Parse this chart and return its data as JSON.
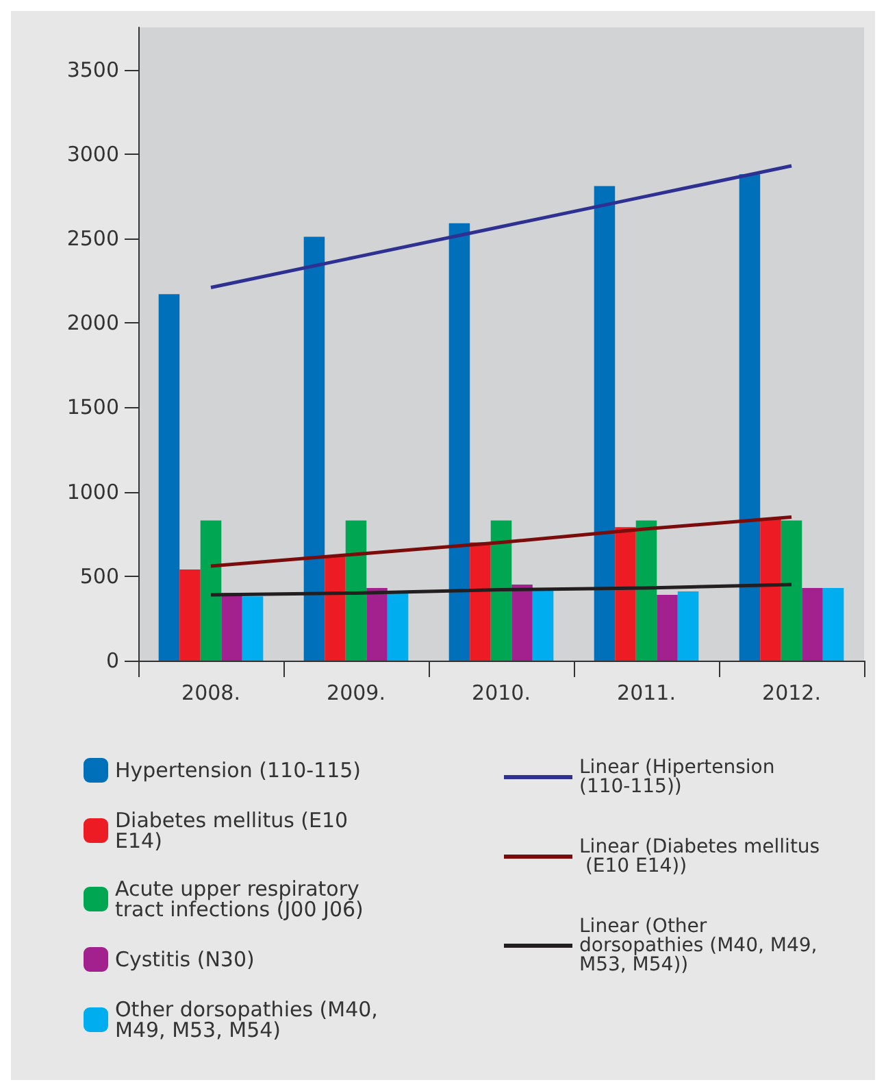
{
  "chart_data": {
    "type": "bar",
    "categories": [
      "2008.",
      "2009.",
      "2010.",
      "2011.",
      "2012."
    ],
    "ylim": [
      0,
      3750
    ],
    "yticks": [
      0,
      500,
      1000,
      1500,
      2000,
      2500,
      3000,
      3500
    ],
    "grid": false,
    "legend": "bottom",
    "series": [
      {
        "name": "Hypertension (110-115)",
        "color": "#0070ba",
        "values": [
          2170,
          2510,
          2590,
          2810,
          2880
        ]
      },
      {
        "name": "Diabetes mellitus (E10 E14)",
        "color": "#ed1c24",
        "values": [
          540,
          620,
          700,
          790,
          840
        ]
      },
      {
        "name": "Acute upper respiratory tract infections (J00 J06)",
        "color": "#00a651",
        "values": [
          830,
          830,
          830,
          830,
          830
        ]
      },
      {
        "name": "Cystitis (N30)",
        "color": "#a3218e",
        "values": [
          400,
          430,
          450,
          390,
          430
        ]
      },
      {
        "name": "Other dorsopathies (M40, M49, M53, M54)",
        "color": "#00aeef",
        "values": [
          380,
          400,
          430,
          410,
          430
        ]
      },
      {
        "name": "Linear (Hipertension (110-115))",
        "type": "line",
        "color": "#2e3192",
        "values": [
          2210,
          2390,
          2570,
          2750,
          2930
        ]
      },
      {
        "name": "Linear (Diabetes mellitus (E10 E14))",
        "type": "line",
        "color": "#7b0c0c",
        "values": [
          560,
          630,
          700,
          780,
          850
        ]
      },
      {
        "name": "Linear (Other dorsopathies (M40, M49, M53, M54))",
        "type": "line",
        "color": "#231f20",
        "values": [
          390,
          400,
          420,
          430,
          450
        ]
      }
    ]
  }
}
